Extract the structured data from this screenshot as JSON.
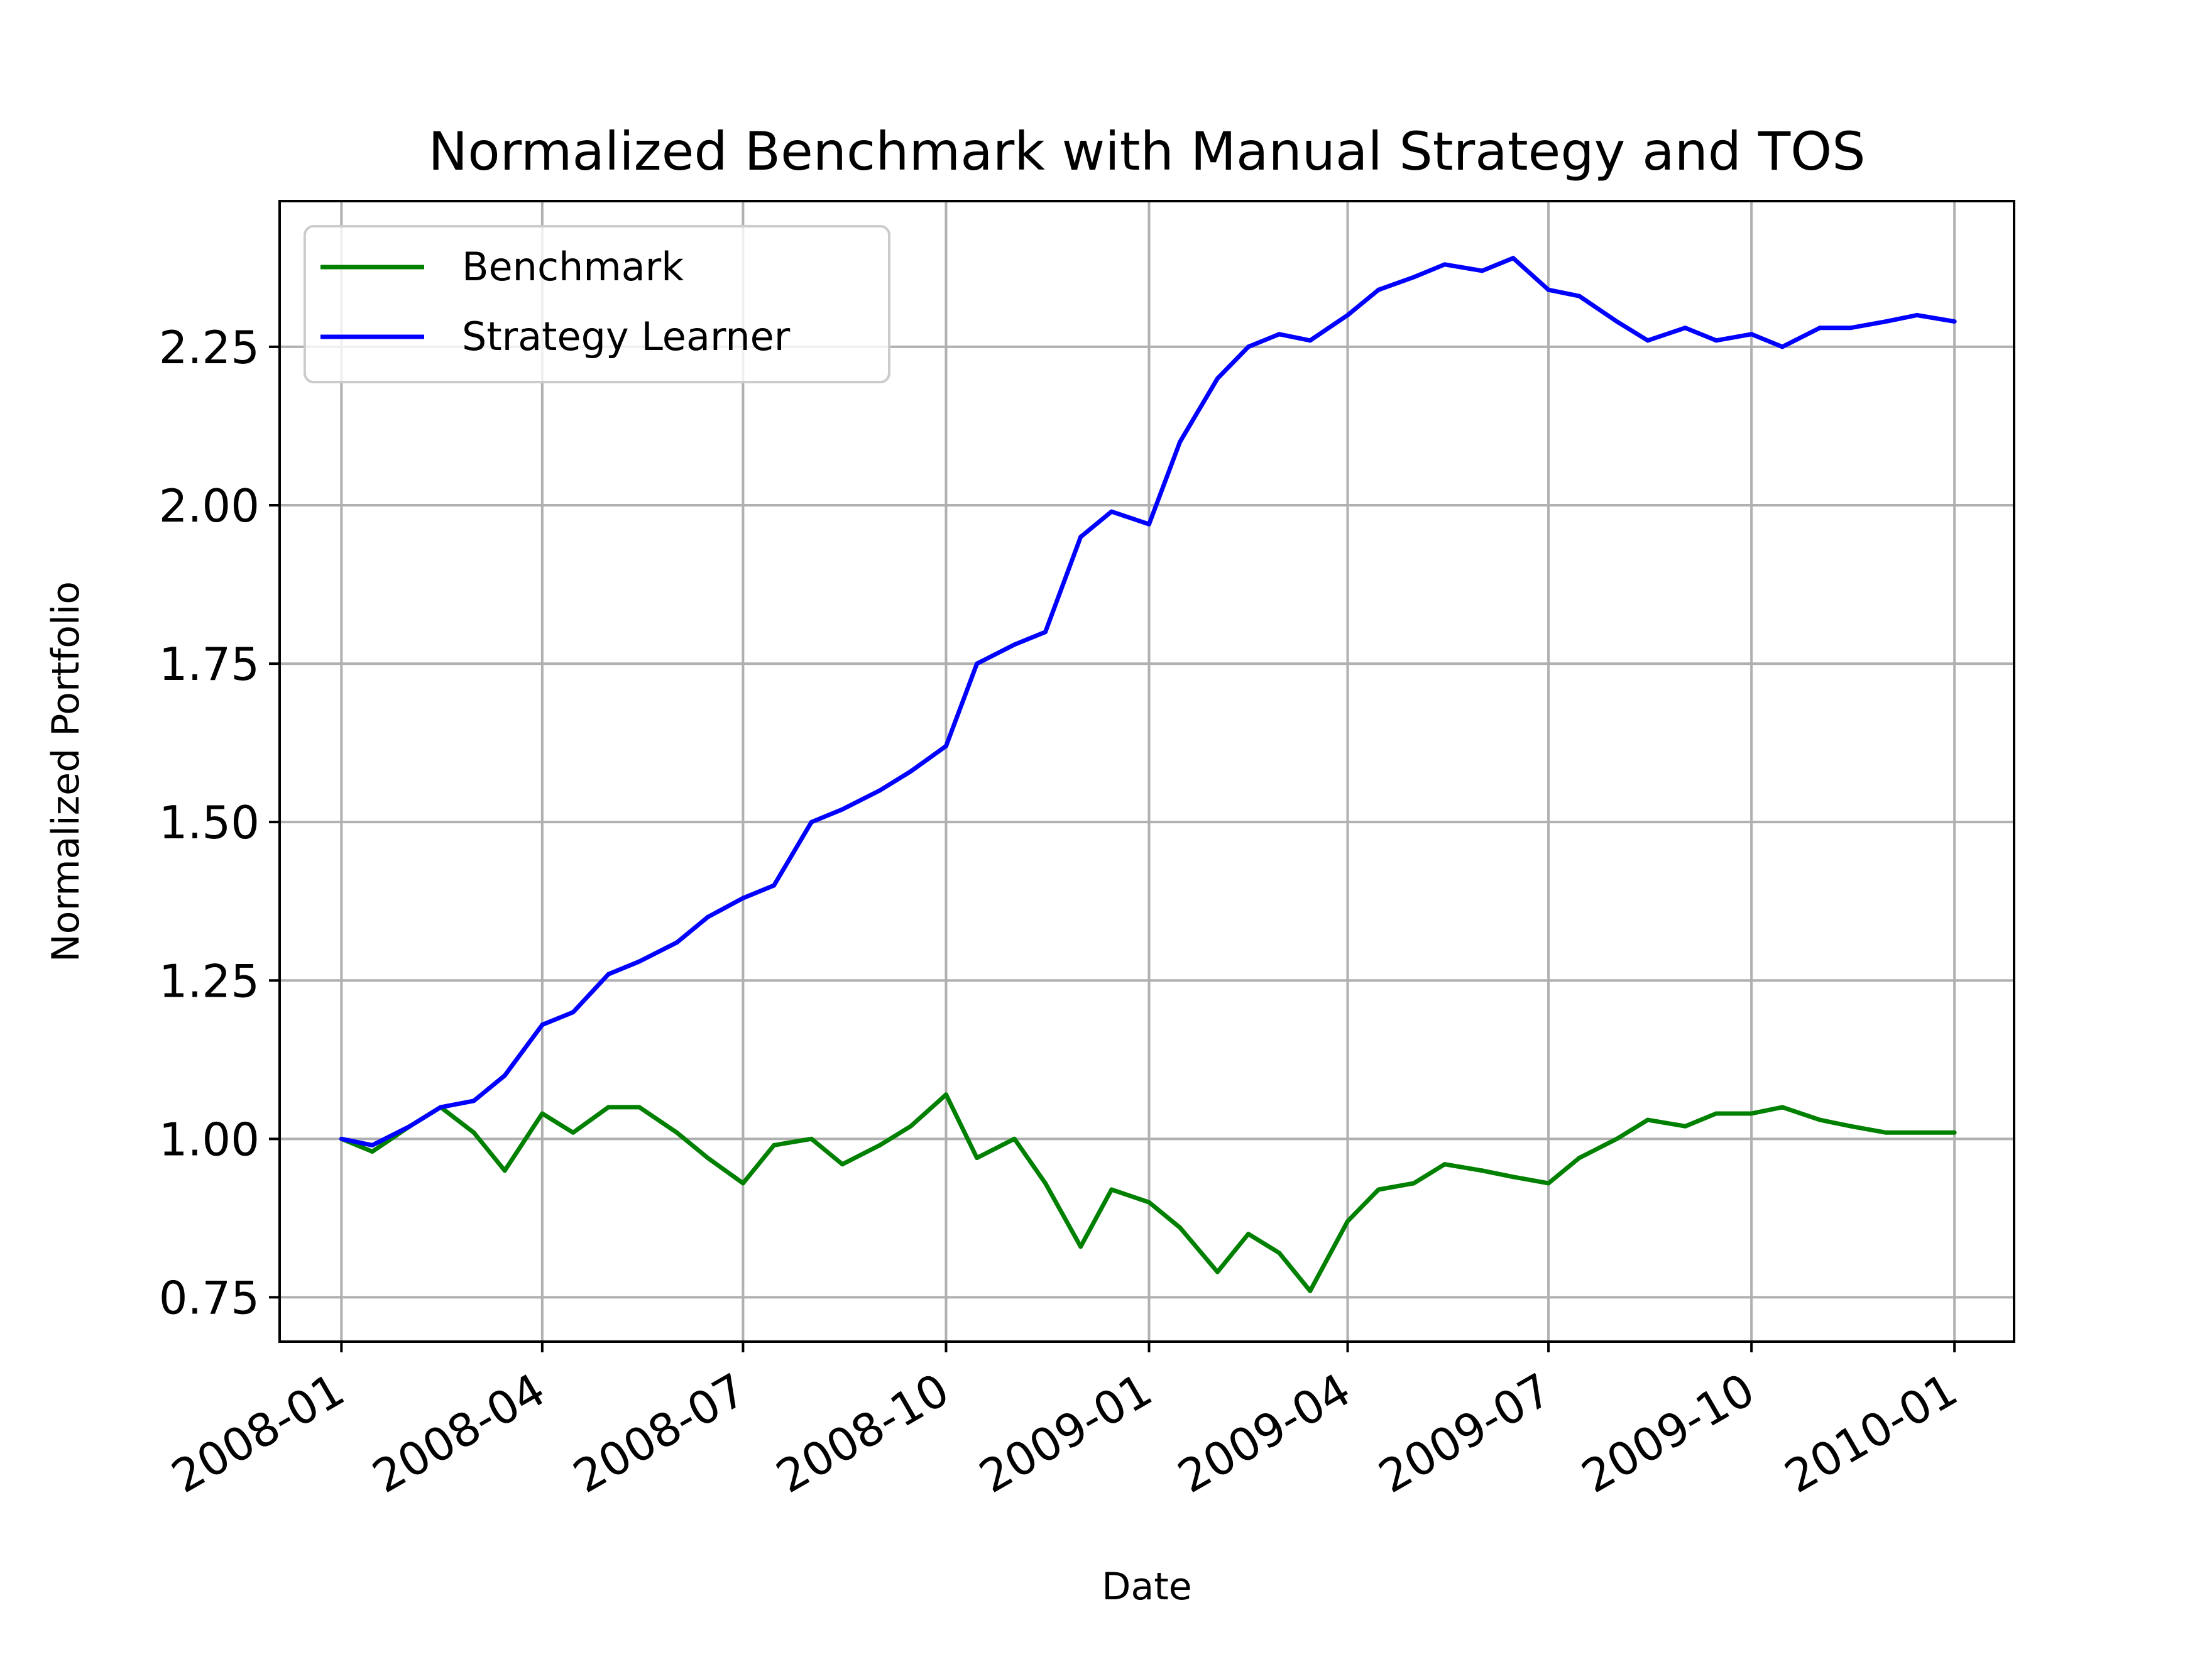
{
  "chart_data": {
    "type": "line",
    "title": "Normalized Benchmark with Manual Strategy and TOS",
    "xlabel": "Date",
    "ylabel": "Normalized Portfolio",
    "x_ticks": [
      "2008-01",
      "2008-04",
      "2008-07",
      "2008-10",
      "2009-01",
      "2009-04",
      "2009-07",
      "2009-10",
      "2010-01"
    ],
    "y_ticks": [
      "0.75",
      "1.00",
      "1.25",
      "1.50",
      "1.75",
      "2.00",
      "2.25"
    ],
    "xlim": [
      "2007-12-04",
      "2010-01-28"
    ],
    "ylim": [
      0.68,
      2.48
    ],
    "grid": true,
    "legend": "upper-left",
    "series": [
      {
        "name": "Benchmark",
        "color": "#008000",
        "points": [
          [
            "2008-01-01",
            1.0
          ],
          [
            "2008-01-15",
            0.98
          ],
          [
            "2008-02-01",
            1.02
          ],
          [
            "2008-02-15",
            1.05
          ],
          [
            "2008-03-01",
            1.01
          ],
          [
            "2008-03-15",
            0.95
          ],
          [
            "2008-04-01",
            1.04
          ],
          [
            "2008-04-15",
            1.01
          ],
          [
            "2008-05-01",
            1.05
          ],
          [
            "2008-05-15",
            1.05
          ],
          [
            "2008-06-01",
            1.01
          ],
          [
            "2008-06-15",
            0.97
          ],
          [
            "2008-07-01",
            0.93
          ],
          [
            "2008-07-15",
            0.99
          ],
          [
            "2008-08-01",
            1.0
          ],
          [
            "2008-08-15",
            0.96
          ],
          [
            "2008-09-01",
            0.99
          ],
          [
            "2008-09-15",
            1.02
          ],
          [
            "2008-10-01",
            1.07
          ],
          [
            "2008-10-15",
            0.97
          ],
          [
            "2008-11-01",
            1.0
          ],
          [
            "2008-11-15",
            0.93
          ],
          [
            "2008-12-01",
            0.83
          ],
          [
            "2008-12-15",
            0.92
          ],
          [
            "2009-01-01",
            0.9
          ],
          [
            "2009-01-15",
            0.86
          ],
          [
            "2009-02-01",
            0.79
          ],
          [
            "2009-02-15",
            0.85
          ],
          [
            "2009-03-01",
            0.82
          ],
          [
            "2009-03-15",
            0.76
          ],
          [
            "2009-04-01",
            0.87
          ],
          [
            "2009-04-15",
            0.92
          ],
          [
            "2009-05-01",
            0.93
          ],
          [
            "2009-05-15",
            0.96
          ],
          [
            "2009-06-01",
            0.95
          ],
          [
            "2009-06-15",
            0.94
          ],
          [
            "2009-07-01",
            0.93
          ],
          [
            "2009-07-15",
            0.97
          ],
          [
            "2009-08-01",
            1.0
          ],
          [
            "2009-08-15",
            1.03
          ],
          [
            "2009-09-01",
            1.02
          ],
          [
            "2009-09-15",
            1.04
          ],
          [
            "2009-10-01",
            1.04
          ],
          [
            "2009-10-15",
            1.05
          ],
          [
            "2009-11-01",
            1.03
          ],
          [
            "2009-11-15",
            1.02
          ],
          [
            "2009-12-01",
            1.01
          ],
          [
            "2009-12-15",
            1.01
          ],
          [
            "2010-01-01",
            1.01
          ]
        ]
      },
      {
        "name": "Strategy Learner",
        "color": "#0000ff",
        "points": [
          [
            "2008-01-01",
            1.0
          ],
          [
            "2008-01-15",
            0.99
          ],
          [
            "2008-02-01",
            1.02
          ],
          [
            "2008-02-15",
            1.05
          ],
          [
            "2008-03-01",
            1.06
          ],
          [
            "2008-03-15",
            1.1
          ],
          [
            "2008-04-01",
            1.18
          ],
          [
            "2008-04-15",
            1.2
          ],
          [
            "2008-05-01",
            1.26
          ],
          [
            "2008-05-15",
            1.28
          ],
          [
            "2008-06-01",
            1.31
          ],
          [
            "2008-06-15",
            1.35
          ],
          [
            "2008-07-01",
            1.38
          ],
          [
            "2008-07-15",
            1.4
          ],
          [
            "2008-08-01",
            1.5
          ],
          [
            "2008-08-15",
            1.52
          ],
          [
            "2008-09-01",
            1.55
          ],
          [
            "2008-09-15",
            1.58
          ],
          [
            "2008-10-01",
            1.62
          ],
          [
            "2008-10-15",
            1.75
          ],
          [
            "2008-11-01",
            1.78
          ],
          [
            "2008-11-15",
            1.8
          ],
          [
            "2008-12-01",
            1.95
          ],
          [
            "2008-12-15",
            1.99
          ],
          [
            "2009-01-01",
            1.97
          ],
          [
            "2009-01-15",
            2.1
          ],
          [
            "2009-02-01",
            2.2
          ],
          [
            "2009-02-15",
            2.25
          ],
          [
            "2009-03-01",
            2.27
          ],
          [
            "2009-03-15",
            2.26
          ],
          [
            "2009-04-01",
            2.3
          ],
          [
            "2009-04-15",
            2.34
          ],
          [
            "2009-05-01",
            2.36
          ],
          [
            "2009-05-15",
            2.38
          ],
          [
            "2009-06-01",
            2.37
          ],
          [
            "2009-06-15",
            2.39
          ],
          [
            "2009-07-01",
            2.34
          ],
          [
            "2009-07-15",
            2.33
          ],
          [
            "2009-08-01",
            2.29
          ],
          [
            "2009-08-15",
            2.26
          ],
          [
            "2009-09-01",
            2.28
          ],
          [
            "2009-09-15",
            2.26
          ],
          [
            "2009-10-01",
            2.27
          ],
          [
            "2009-10-15",
            2.25
          ],
          [
            "2009-11-01",
            2.28
          ],
          [
            "2009-11-15",
            2.28
          ],
          [
            "2009-12-01",
            2.29
          ],
          [
            "2009-12-15",
            2.3
          ],
          [
            "2010-01-01",
            2.29
          ]
        ]
      }
    ]
  }
}
